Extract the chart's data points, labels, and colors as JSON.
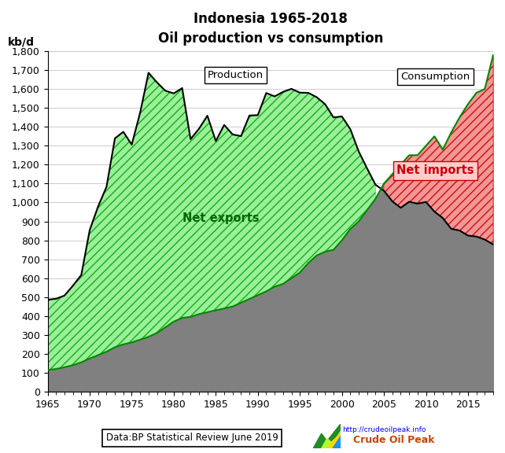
{
  "title_line1": "Indonesia 1965-2018",
  "title_line2": "Oil production vs consumption",
  "ylabel": "kb/d",
  "xlabel_source": "Data:BP Statistical Review June 2019",
  "url_text": "http://crudeoilpeak.info",
  "brand_text": "Crude Oil Peak",
  "years": [
    1965,
    1966,
    1967,
    1968,
    1969,
    1970,
    1971,
    1972,
    1973,
    1974,
    1975,
    1976,
    1977,
    1978,
    1979,
    1980,
    1981,
    1982,
    1983,
    1984,
    1985,
    1986,
    1987,
    1988,
    1989,
    1990,
    1991,
    1992,
    1993,
    1994,
    1995,
    1996,
    1997,
    1998,
    1999,
    2000,
    2001,
    2002,
    2003,
    2004,
    2005,
    2006,
    2007,
    2008,
    2009,
    2010,
    2011,
    2012,
    2013,
    2014,
    2015,
    2016,
    2017,
    2018
  ],
  "production": [
    486,
    491,
    508,
    560,
    617,
    854,
    979,
    1083,
    1339,
    1374,
    1306,
    1475,
    1686,
    1635,
    1591,
    1577,
    1605,
    1335,
    1390,
    1459,
    1325,
    1410,
    1360,
    1351,
    1460,
    1462,
    1579,
    1561,
    1585,
    1601,
    1581,
    1580,
    1557,
    1520,
    1450,
    1455,
    1388,
    1270,
    1180,
    1094,
    1062,
    1006,
    972,
    1004,
    994,
    1003,
    952,
    918,
    861,
    852,
    825,
    820,
    804,
    778
  ],
  "consumption": [
    114,
    120,
    129,
    140,
    155,
    175,
    193,
    211,
    235,
    250,
    260,
    275,
    290,
    310,
    340,
    370,
    390,
    395,
    410,
    420,
    430,
    440,
    450,
    470,
    490,
    510,
    530,
    555,
    570,
    600,
    630,
    680,
    720,
    740,
    750,
    800,
    860,
    900,
    960,
    1020,
    1100,
    1150,
    1200,
    1250,
    1250,
    1300,
    1350,
    1280,
    1370,
    1450,
    1520,
    1580,
    1600,
    1780
  ],
  "ylim": [
    0,
    1800
  ],
  "xlim": [
    1965,
    2018
  ],
  "yticks": [
    0,
    100,
    200,
    300,
    400,
    500,
    600,
    700,
    800,
    900,
    1000,
    1100,
    1200,
    1300,
    1400,
    1500,
    1600,
    1700,
    1800
  ],
  "xticks": [
    1965,
    1970,
    1975,
    1980,
    1985,
    1990,
    1995,
    2000,
    2005,
    2010,
    2015
  ],
  "gray_fill": "#808080",
  "green_fill": "#90ee90",
  "green_hatch_color": "#00aa00",
  "red_fill": "#ff9999",
  "red_hatch_color": "#cc0000",
  "line_color": "#000000",
  "consumption_line_color": "#008800",
  "net_exports_text_color": "#006600",
  "net_imports_text_color": "#cc0000",
  "net_imports_box_color": "#ffcccc",
  "net_imports_box_edge": "#cc0000"
}
